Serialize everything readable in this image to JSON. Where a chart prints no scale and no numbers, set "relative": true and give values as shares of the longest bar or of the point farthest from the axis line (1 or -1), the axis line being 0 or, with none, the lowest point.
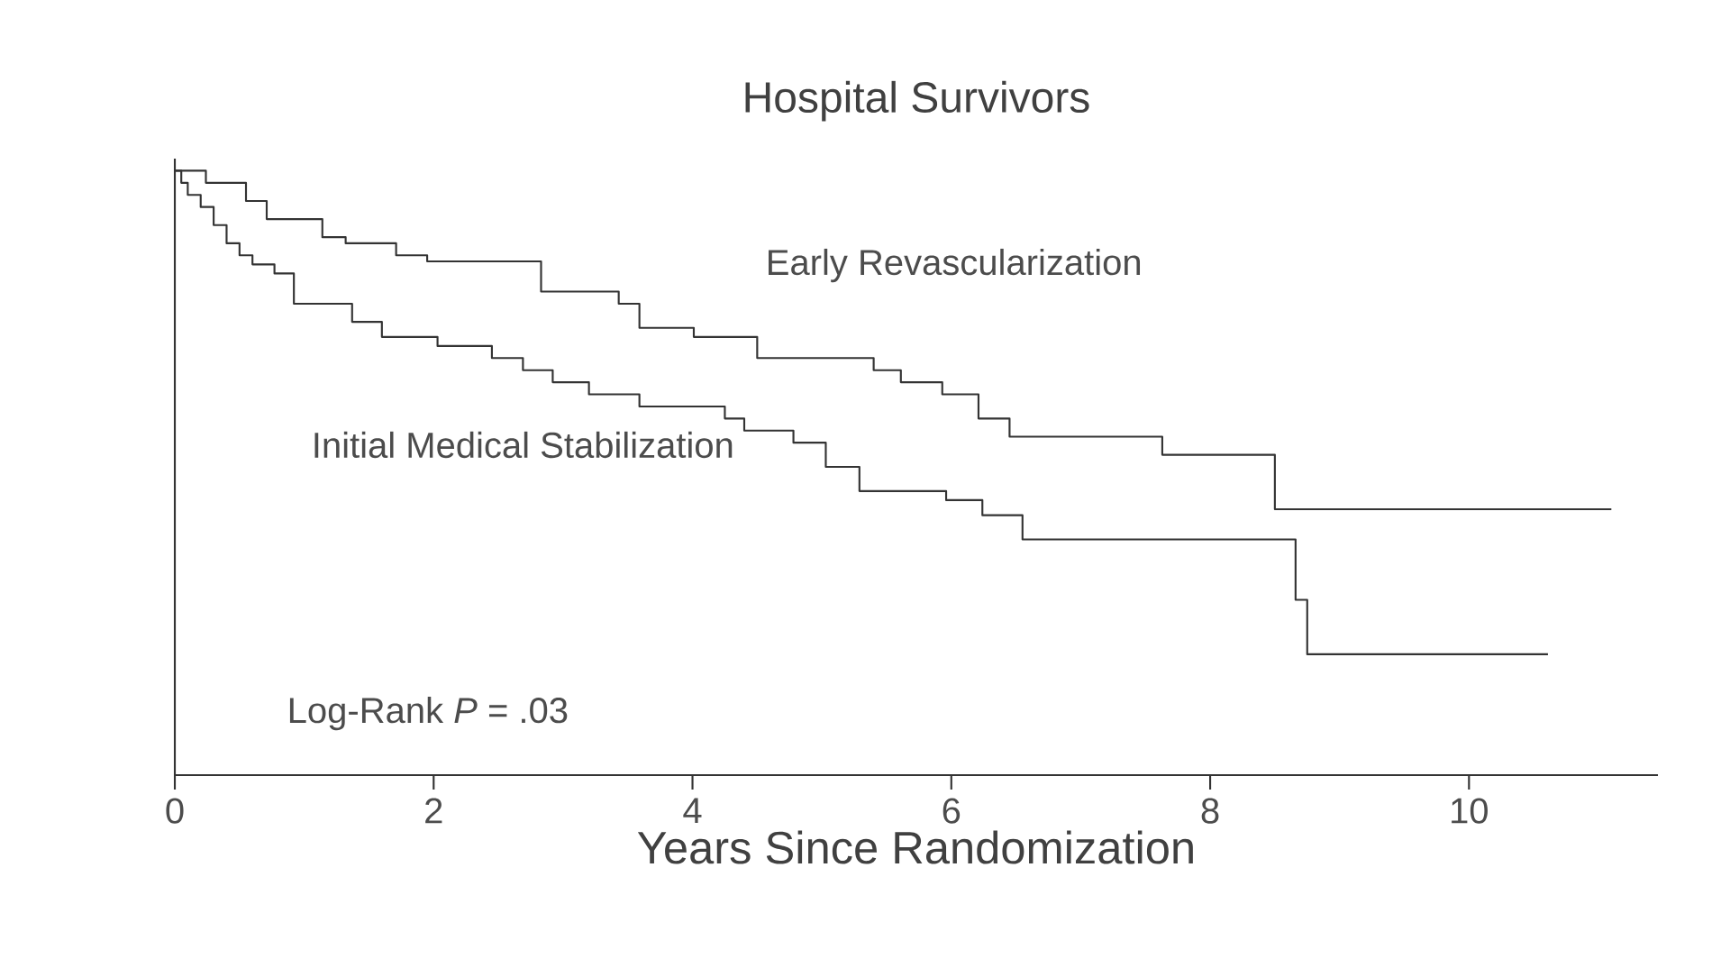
{
  "chart_data": {
    "type": "step",
    "title": "Hospital Survivors",
    "xlabel": "Years Since Randomization",
    "relative": true,
    "xlim": [
      0,
      11.46
    ],
    "xticks": [
      0,
      2,
      4,
      6,
      8,
      10
    ],
    "annotations": [
      "Log-Rank *P* = .03"
    ],
    "series": [
      {
        "name": "Early Revascularization",
        "color": "#333333",
        "x": [
          0,
          0.24,
          0.55,
          0.71,
          1.14,
          1.32,
          1.71,
          1.95,
          2.83,
          3.43,
          3.59,
          4.01,
          4.5,
          5.4,
          5.61,
          5.93,
          6.21,
          6.45,
          7.63,
          8.5,
          11.1
        ],
        "values": [
          1,
          0.98,
          0.95,
          0.92,
          0.89,
          0.88,
          0.86,
          0.85,
          0.8,
          0.78,
          0.74,
          0.725,
          0.69,
          0.67,
          0.65,
          0.63,
          0.59,
          0.56,
          0.53,
          0.44,
          0.44
        ]
      },
      {
        "name": "Initial Medical Stabilization",
        "color": "#333333",
        "x": [
          0,
          0.05,
          0.1,
          0.2,
          0.3,
          0.4,
          0.5,
          0.6,
          0.77,
          0.92,
          1.37,
          1.6,
          2.03,
          2.45,
          2.69,
          2.92,
          3.2,
          3.59,
          4.25,
          4.4,
          4.78,
          5.03,
          5.29,
          5.96,
          6.24,
          6.55,
          8.66,
          8.75,
          10.61
        ],
        "values": [
          1,
          0.98,
          0.96,
          0.94,
          0.91,
          0.88,
          0.86,
          0.845,
          0.83,
          0.78,
          0.75,
          0.725,
          0.71,
          0.69,
          0.67,
          0.65,
          0.63,
          0.61,
          0.59,
          0.57,
          0.55,
          0.51,
          0.47,
          0.455,
          0.43,
          0.39,
          0.29,
          0.2,
          0.2
        ]
      }
    ]
  }
}
